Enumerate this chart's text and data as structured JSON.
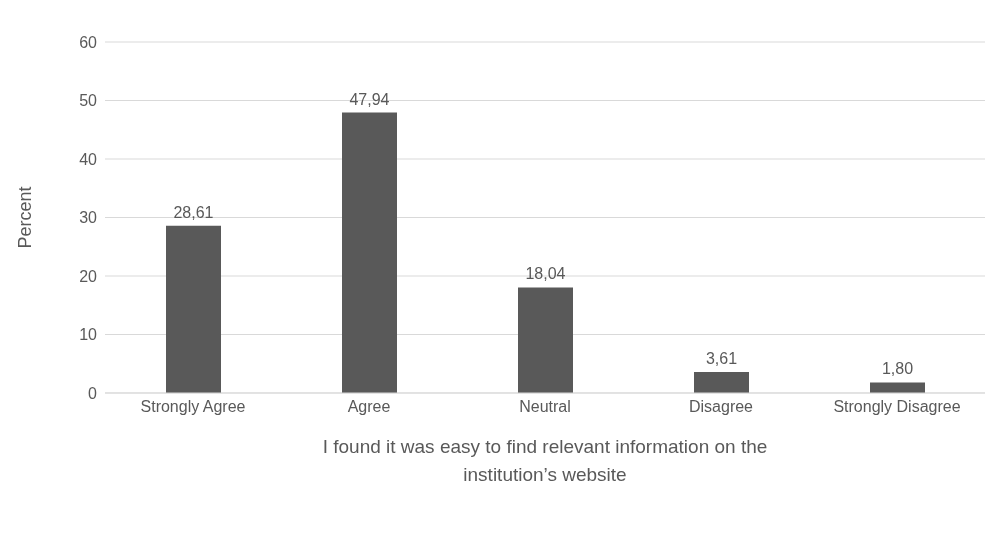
{
  "chart_data": {
    "type": "bar",
    "xlabel": "I found it was easy to find relevant information on the institution’s website",
    "ylabel": "Percent",
    "categories": [
      "Strongly Agree",
      "Agree",
      "Neutral",
      "Disagree",
      "Strongly Disagree"
    ],
    "values": [
      28.61,
      47.94,
      18.04,
      3.61,
      1.8
    ],
    "value_labels": [
      "28,61",
      "47,94",
      "18,04",
      "3,61",
      "1,80"
    ],
    "color": "#595959",
    "ylim": [
      0,
      60
    ],
    "yticks": [
      0,
      10,
      20,
      30,
      40,
      50,
      60
    ],
    "grid": "y"
  }
}
